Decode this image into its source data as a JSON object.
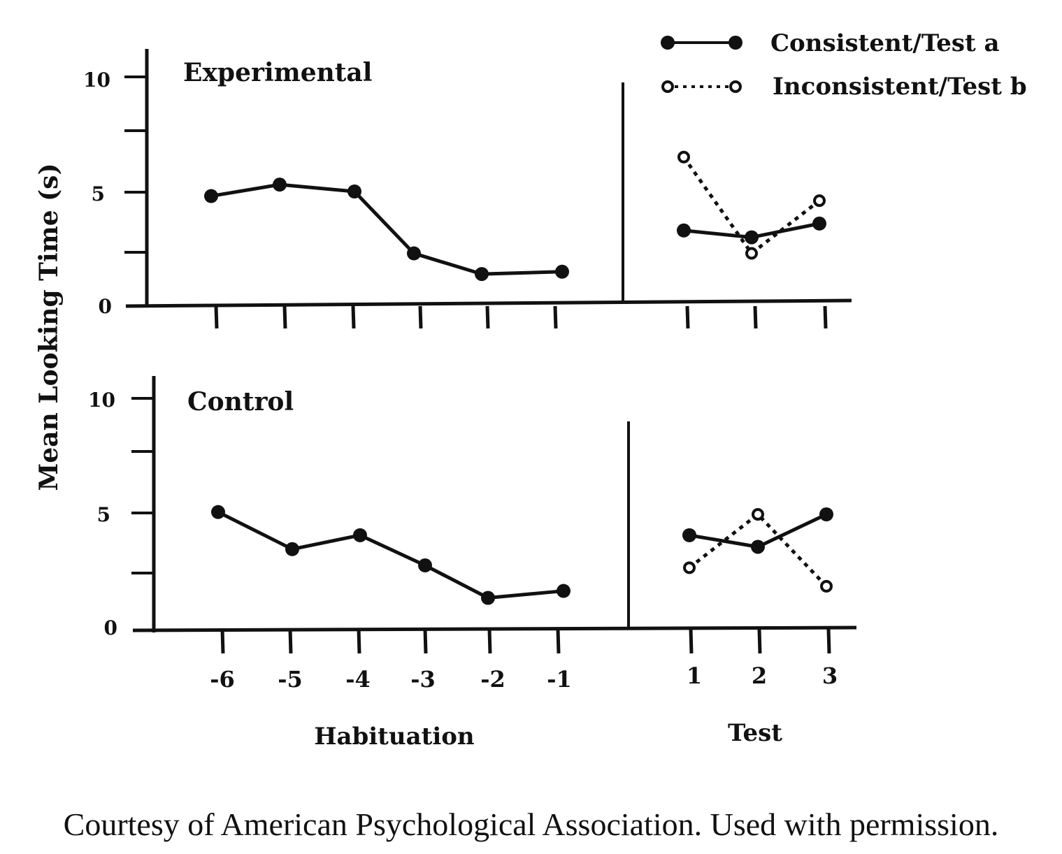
{
  "chart_data": {
    "type": "line",
    "ylabel": "Mean Looking Time (s)",
    "yticks": [
      "10",
      "5",
      "0"
    ],
    "ylim": [
      0,
      10
    ],
    "grid": false,
    "legend_position": "top-right",
    "legend": [
      {
        "label": "Consistent/Test a",
        "marker": "filled-circle",
        "line": "solid"
      },
      {
        "label": "Inconsistent/Test b",
        "marker": "open-circle",
        "line": "dotted"
      }
    ],
    "habituation_label": "Habituation",
    "test_label": "Test",
    "habituation_trials": [
      "-6",
      "-5",
      "-4",
      "-3",
      "-2",
      "-1"
    ],
    "test_trials": [
      "1",
      "2",
      "3"
    ],
    "panels": [
      {
        "title": "Experimental",
        "habituation": [
          4.8,
          5.3,
          5.0,
          2.3,
          1.4,
          1.5
        ],
        "consistent": [
          3.3,
          3.0,
          3.6
        ],
        "inconsistent": [
          6.5,
          2.3,
          4.6
        ]
      },
      {
        "title": "Control",
        "habituation": [
          5.1,
          3.5,
          4.1,
          2.8,
          1.4,
          1.7
        ],
        "consistent": [
          4.1,
          3.6,
          5.0
        ],
        "inconsistent": [
          2.7,
          5.0,
          1.9
        ]
      }
    ],
    "colors": {
      "ink": "#111111",
      "background": "#ffffff"
    }
  },
  "caption": "Courtesy of American Psychological Association. Used with permission."
}
